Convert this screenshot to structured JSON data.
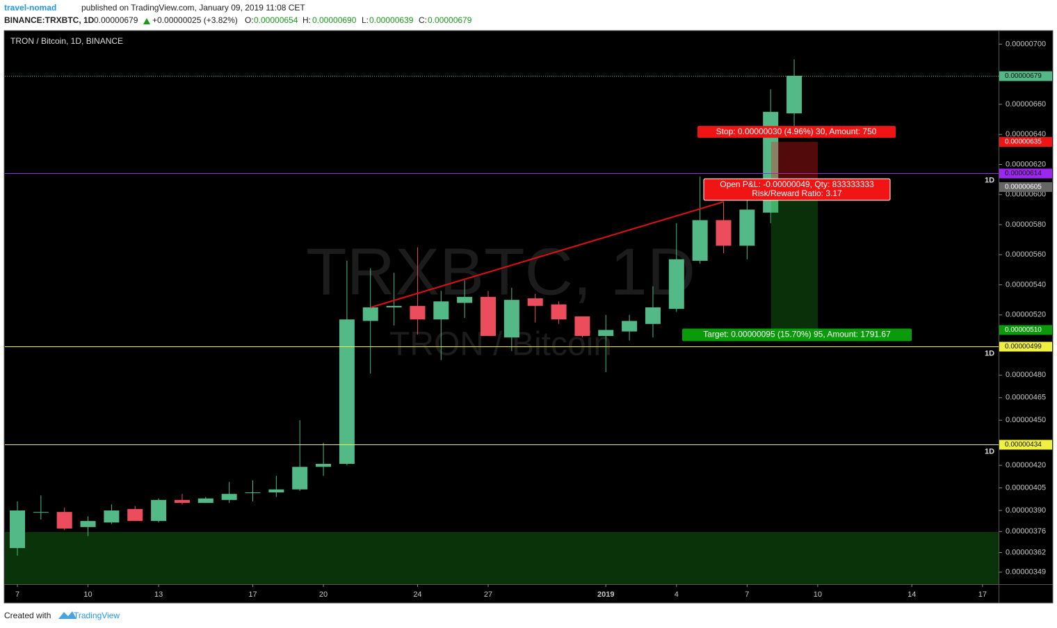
{
  "header": {
    "author": "travel-nomad",
    "published": "published on TradingView.com, January 09, 2019 11:08 CET",
    "symbol": "BINANCE:TRXBTC, 1D",
    "last": "0.00000679",
    "change": "+0.00000025 (+3.82%)",
    "o_label": "O:",
    "o": "0.00000654",
    "h_label": "H:",
    "h": "0.00000690",
    "l_label": "L:",
    "l": "0.00000639",
    "c_label": "C:",
    "c": "0.00000679"
  },
  "chart_data": {
    "type": "candlestick",
    "title": "TRON / Bitcoin, 1D, BINANCE",
    "watermark": "TRXBTC, 1D",
    "watermark_subtitle": "TRON / Bitcoin",
    "categories": [
      "7",
      null,
      null,
      "10",
      null,
      null,
      "13",
      null,
      null,
      null,
      "17",
      null,
      null,
      "20",
      null,
      null,
      null,
      "24",
      null,
      null,
      "27",
      null,
      null,
      null,
      null,
      "2019",
      null,
      null,
      "4",
      null,
      null,
      "7",
      null,
      null,
      "10",
      null,
      null,
      null,
      "14",
      null,
      null,
      "17"
    ],
    "open": [
      3.65e-06,
      3.89e-06,
      3.89e-06,
      3.79e-06,
      3.82e-06,
      3.91e-06,
      3.83e-06,
      3.97e-06,
      3.95e-06,
      3.97e-06,
      4.02e-06,
      4.02e-06,
      4.04e-06,
      4.19e-06,
      4.21e-06,
      5.16e-06,
      5.25e-06,
      5.26e-06,
      5.17e-06,
      5.28e-06,
      5.32e-06,
      5.05e-06,
      5.31e-06,
      5.27e-06,
      5.19e-06,
      5.06e-06,
      5.09e-06,
      5.14e-06,
      5.24e-06,
      5.56e-06,
      5.83e-06,
      5.66e-06,
      5.88e-06,
      6.54e-06,
      null,
      null,
      null,
      null,
      null,
      null,
      null,
      null
    ],
    "high": [
      3.96e-06,
      4e-06,
      3.92e-06,
      3.86e-06,
      3.94e-06,
      3.93e-06,
      3.98e-06,
      4.01e-06,
      3.99e-06,
      4.09e-06,
      4.1e-06,
      4.13e-06,
      4.5e-06,
      4.35e-06,
      5.56e-06,
      5.51e-06,
      5.48e-06,
      5.65e-06,
      5.36e-06,
      5.43e-06,
      5.36e-06,
      5.38e-06,
      5.34e-06,
      5.29e-06,
      5.19e-06,
      5.2e-06,
      5.2e-06,
      5.39e-06,
      5.81e-06,
      6.12e-06,
      5.95e-06,
      5.99e-06,
      6.7e-06,
      6.9e-06,
      null,
      null,
      null,
      null,
      null,
      null,
      null,
      null
    ],
    "low": [
      3.6e-06,
      3.84e-06,
      3.77e-06,
      3.73e-06,
      3.81e-06,
      3.83e-06,
      3.82e-06,
      3.94e-06,
      3.95e-06,
      3.95e-06,
      3.96e-06,
      3.99e-06,
      4.03e-06,
      4.13e-06,
      4.2e-06,
      4.81e-06,
      5.13e-06,
      5.07e-06,
      4.9e-06,
      5.18e-06,
      5.06e-06,
      4.96e-06,
      5.15e-06,
      5.14e-06,
      5.05e-06,
      4.82e-06,
      5.03e-06,
      5.05e-06,
      5.22e-06,
      5.54e-06,
      5.61e-06,
      5.57e-06,
      5.81e-06,
      6.39e-06,
      null,
      null,
      null,
      null,
      null,
      null,
      null,
      null
    ],
    "close": [
      3.9e-06,
      3.89e-06,
      3.78e-06,
      3.83e-06,
      3.9e-06,
      3.83e-06,
      3.97e-06,
      3.95e-06,
      3.98e-06,
      4.01e-06,
      4.02e-06,
      4.04e-06,
      4.19e-06,
      4.21e-06,
      5.17e-06,
      5.25e-06,
      5.26e-06,
      5.17e-06,
      5.29e-06,
      5.32e-06,
      5.06e-06,
      5.3e-06,
      5.26e-06,
      5.17e-06,
      5.06e-06,
      5.1e-06,
      5.16e-06,
      5.25e-06,
      5.57e-06,
      5.83e-06,
      5.66e-06,
      5.9e-06,
      6.55e-06,
      6.79e-06,
      null,
      null,
      null,
      null,
      null,
      null,
      null,
      null
    ],
    "up_color": "#53b987",
    "down_color": "#eb4d5c",
    "ylim": [
      3.41e-06,
      7.09e-06
    ],
    "yticks": [
      {
        "value": 7e-06,
        "label": "0.00000700"
      },
      {
        "value": 6.6e-06,
        "label": "0.00000660"
      },
      {
        "value": 6.4e-06,
        "label": "0.00000640"
      },
      {
        "value": 6.2e-06,
        "label": "0.00000620"
      },
      {
        "value": 6e-06,
        "label": "0.00000600"
      },
      {
        "value": 5.8e-06,
        "label": "0.00000580"
      },
      {
        "value": 5.6e-06,
        "label": "0.00000560"
      },
      {
        "value": 5.4e-06,
        "label": "0.00000540"
      },
      {
        "value": 5.2e-06,
        "label": "0.00000520"
      },
      {
        "value": 4.8e-06,
        "label": "0.00000480"
      },
      {
        "value": 4.65e-06,
        "label": "0.00000465"
      },
      {
        "value": 4.5e-06,
        "label": "0.00000450"
      },
      {
        "value": 4.2e-06,
        "label": "0.00000420"
      },
      {
        "value": 4.05e-06,
        "label": "0.00000405"
      },
      {
        "value": 3.9e-06,
        "label": "0.00000390"
      },
      {
        "value": 3.76e-06,
        "label": "0.00000376"
      },
      {
        "value": 3.62e-06,
        "label": "0.00000362"
      },
      {
        "value": 3.49e-06,
        "label": "0.00000349"
      }
    ],
    "price_lines": [
      {
        "value": 6.79e-06,
        "label": "0.00000679",
        "color": "#53b987"
      },
      {
        "value": 6.14e-06,
        "label": "0.00000614",
        "color": "#9c27f0",
        "interval": "1D"
      },
      {
        "value": 4.99e-06,
        "label": "0.00000499",
        "color": "#f0f040",
        "interval": "1D"
      },
      {
        "value": 4.34e-06,
        "label": "0.00000434",
        "color": "#f0f040",
        "interval": "1D"
      }
    ],
    "position": {
      "stop": {
        "value": 6.35e-06,
        "label": "0.00000635"
      },
      "entry": {
        "value": 6.05e-06,
        "label": "0.00000605"
      },
      "target": {
        "value": 5.1e-06,
        "label": "0.00000510"
      },
      "stop_text": "Stop: 0.00000030 (4.96%) 30, Amount: 750",
      "pnl_text": "Open P&L: -0.00000049, Qty: 833333333",
      "rr_text": "Risk/Reward Ratio: 3.17",
      "target_text": "Target: 0.00000095 (15.70%) 95, Amount: 1791.67"
    }
  },
  "footer": {
    "created": "Created with",
    "brand": "TradingView"
  }
}
